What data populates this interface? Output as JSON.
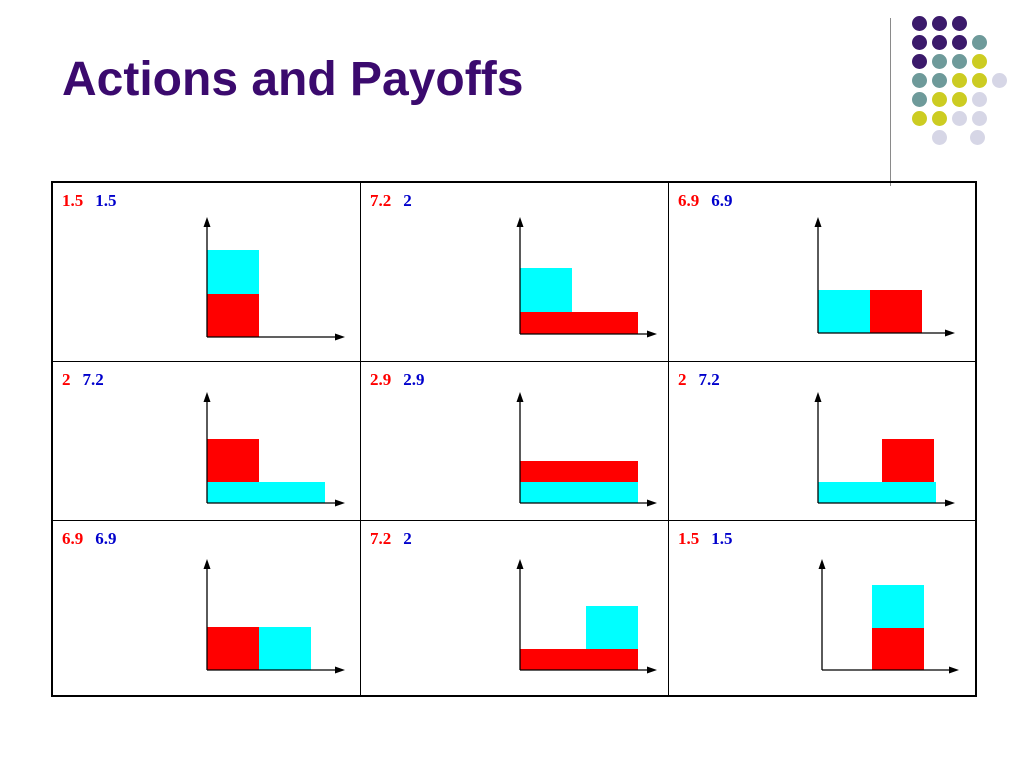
{
  "title": "Actions and Payoffs",
  "colors": {
    "title": "#3b0a6e",
    "player1": "#ff0000",
    "player2": "#0000cc",
    "red_block": "#ff0000",
    "cyan_block": "#00ffff",
    "dots": {
      "purple": "#3b1a6b",
      "teal": "#6e9a9a",
      "yellow": "#cccc22",
      "lavender": "#d6d6e6"
    }
  },
  "decoration": {
    "dot_rows": [
      [
        "purple",
        "purple",
        "purple"
      ],
      [
        "purple",
        "purple",
        "purple",
        "teal"
      ],
      [
        "purple",
        "teal",
        "teal",
        "yellow"
      ],
      [
        "teal",
        "teal",
        "yellow",
        "yellow",
        "lavender"
      ],
      [
        "teal",
        "yellow",
        "yellow",
        "lavender"
      ],
      [
        "yellow",
        "yellow",
        "lavender",
        "lavender"
      ],
      [
        "lavender",
        "lavender"
      ]
    ]
  },
  "matrix": [
    [
      {
        "p1": "1.5",
        "p2": "1.5",
        "arrangement": "stacked-red-bottom"
      },
      {
        "p1": "7.2",
        "p2": "2",
        "arrangement": "red-base-cyan-top-left"
      },
      {
        "p1": "6.9",
        "p2": "6.9",
        "arrangement": "cyan-left-red-right"
      }
    ],
    [
      {
        "p1": "2",
        "p2": "7.2",
        "arrangement": "cyan-base-red-top-left"
      },
      {
        "p1": "2.9",
        "p2": "2.9",
        "arrangement": "two-bars-red-on-cyan"
      },
      {
        "p1": "2",
        "p2": "7.2",
        "arrangement": "cyan-base-red-top-right"
      }
    ],
    [
      {
        "p1": "6.9",
        "p2": "6.9",
        "arrangement": "red-left-cyan-right"
      },
      {
        "p1": "7.2",
        "p2": "2",
        "arrangement": "red-base-cyan-top-right"
      },
      {
        "p1": "1.5",
        "p2": "1.5",
        "arrangement": "stacked-cyan-top"
      }
    ]
  ]
}
